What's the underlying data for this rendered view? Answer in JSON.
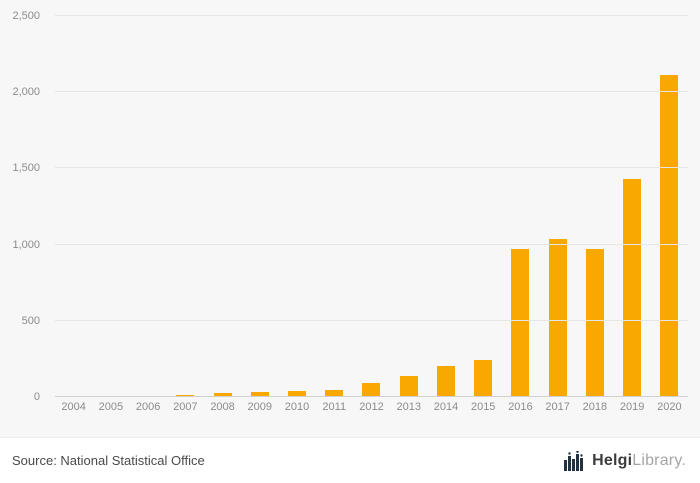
{
  "chart_data": {
    "type": "bar",
    "categories": [
      "2004",
      "2005",
      "2006",
      "2007",
      "2008",
      "2009",
      "2010",
      "2011",
      "2012",
      "2013",
      "2014",
      "2015",
      "2016",
      "2017",
      "2018",
      "2019",
      "2020"
    ],
    "values": [
      0,
      0,
      0,
      10,
      25,
      30,
      38,
      48,
      90,
      135,
      205,
      240,
      970,
      1035,
      970,
      1430,
      2110
    ],
    "title": "",
    "xlabel": "",
    "ylabel": "",
    "ylim": [
      0,
      2500
    ],
    "yticks": [
      0,
      500,
      1000,
      1500,
      2000,
      2500
    ],
    "ytick_labels": [
      "0",
      "500",
      "1,000",
      "1,500",
      "2,000",
      "2,500"
    ],
    "grid": true,
    "legend": "none",
    "bar_color": "#f8a800"
  },
  "colors": {
    "background": "#f7f7f7",
    "footer_background": "#ffffff",
    "bar": "#f8a800",
    "gridline": "#e6e6e6",
    "axis_zero": "#cfcfcf",
    "tick_text": "#8c8c8c"
  },
  "footer": {
    "source": "Source: National Statistical Office",
    "logo_bold": "Helgi",
    "logo_light": "Library."
  }
}
